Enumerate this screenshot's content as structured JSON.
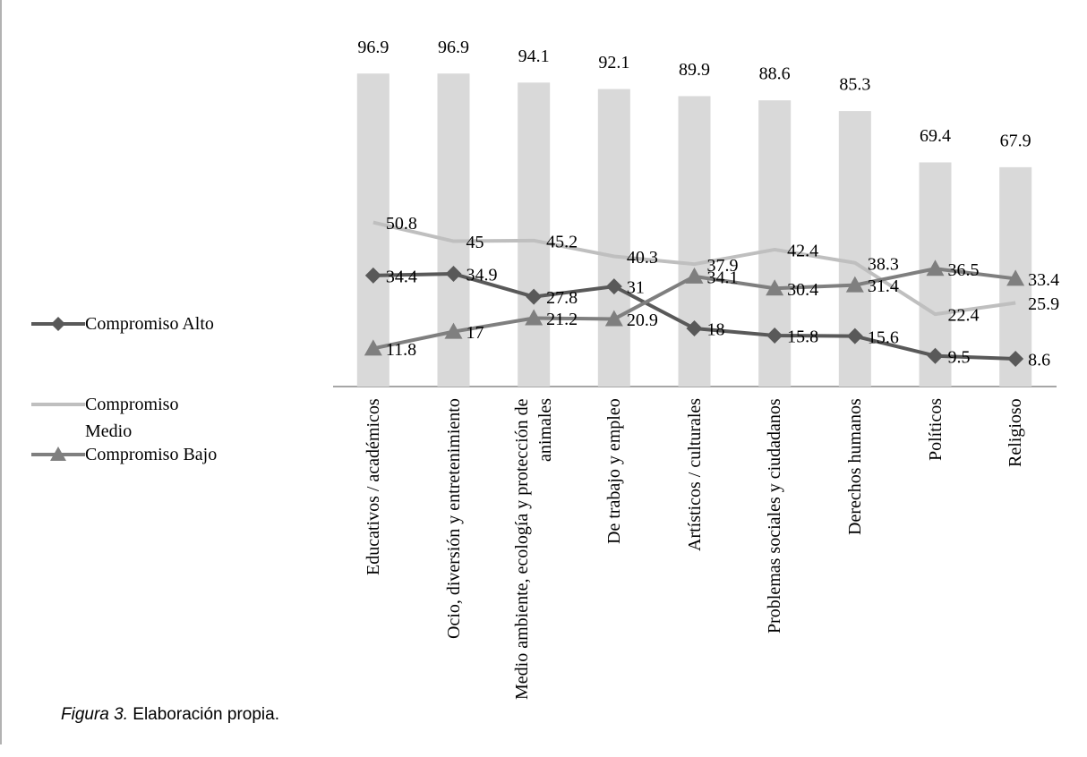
{
  "chart_data": {
    "type": "bar-line",
    "categories": [
      "Educativos / académicos",
      "Ocio, diversión y entretenimiento",
      "Medio ambiente, ecología y protección de animales",
      "De trabajo y empleo",
      "Artísticos / culturales",
      "Problemas sociales y ciudadanos",
      "Derechos humanos",
      "Políticos",
      "Religioso"
    ],
    "bars": {
      "color": "#d9d9d9",
      "values": [
        96.9,
        96.9,
        94.1,
        92.1,
        89.9,
        88.6,
        85.3,
        69.4,
        67.9
      ]
    },
    "series": [
      {
        "name": "Compromiso Alto",
        "color": "#595959",
        "marker": "diamond",
        "values": [
          34.4,
          34.9,
          27.8,
          31,
          18,
          15.8,
          15.6,
          9.5,
          8.6
        ]
      },
      {
        "name": "Compromiso Medio",
        "color": "#bfbfbf",
        "marker": "none",
        "values": [
          50.8,
          45,
          45.2,
          40.3,
          37.9,
          42.4,
          38.3,
          22.4,
          25.9
        ]
      },
      {
        "name": "Compromiso Bajo",
        "color": "#7f7f7f",
        "marker": "triangle",
        "values": [
          11.8,
          17,
          21.2,
          20.9,
          34.1,
          30.4,
          31.4,
          36.5,
          33.4
        ]
      }
    ],
    "ylim": [
      0,
      100
    ],
    "legend": "left",
    "caption_label": "Figura 3.",
    "caption_text": "Elaboración propia."
  }
}
